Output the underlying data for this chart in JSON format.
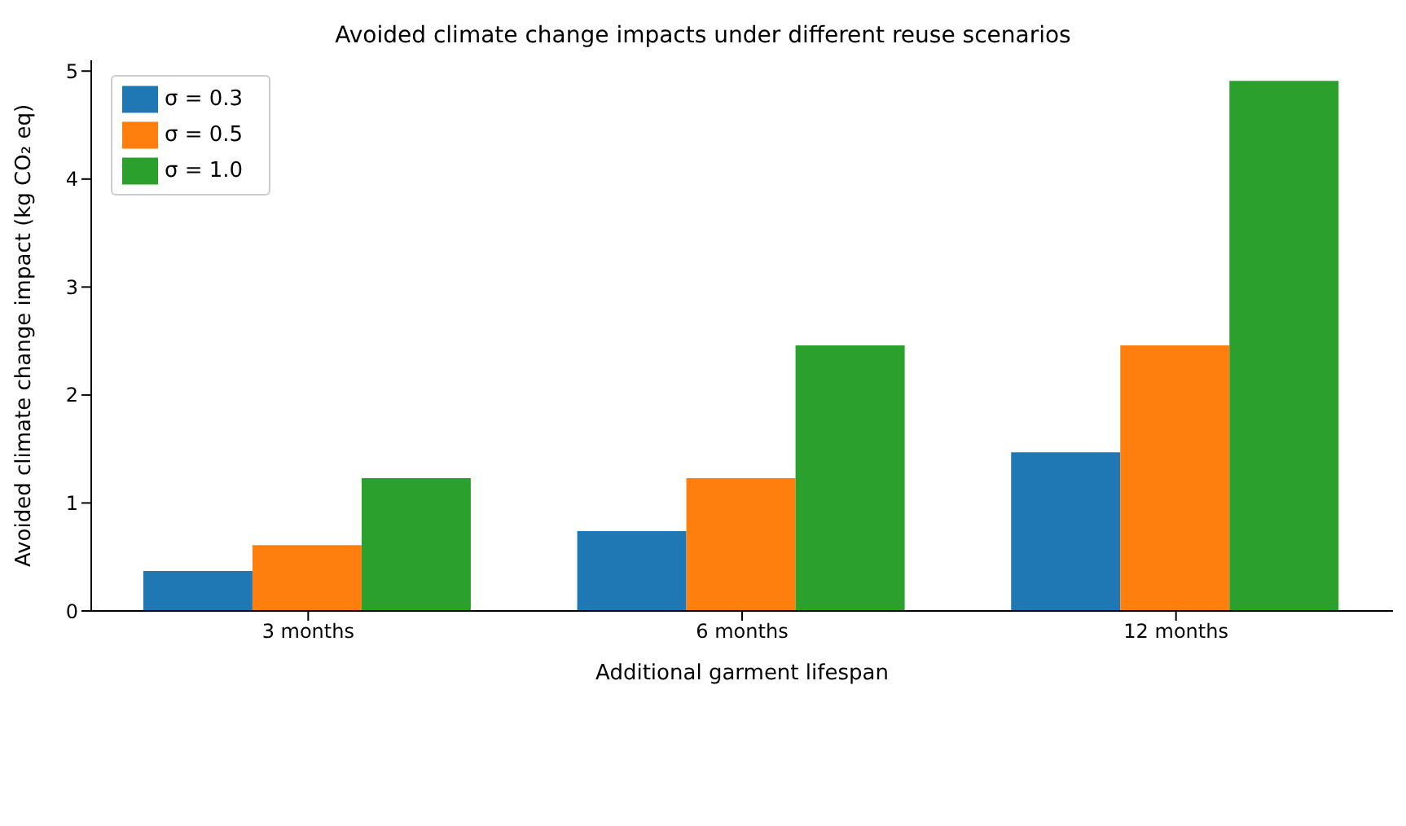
{
  "chart_data": {
    "type": "bar",
    "title": "Avoided climate change impacts under different reuse scenarios",
    "xlabel": "Additional garment lifespan",
    "ylabel": "Avoided climate change impact (kg CO₂ eq)",
    "categories": [
      "3 months",
      "6 months",
      "12 months"
    ],
    "series": [
      {
        "name": "σ = 0.3",
        "color": "#1f77b4",
        "values": [
          0.37,
          0.74,
          1.47
        ]
      },
      {
        "name": "σ = 0.5",
        "color": "#ff7f0e",
        "values": [
          0.61,
          1.23,
          2.46
        ]
      },
      {
        "name": "σ = 1.0",
        "color": "#2ca02c",
        "values": [
          1.23,
          2.46,
          4.91
        ]
      }
    ],
    "ylim": [
      0,
      5.1
    ],
    "yticks": [
      0,
      1,
      2,
      3,
      4,
      5
    ],
    "grid": false,
    "legend": "top left"
  }
}
